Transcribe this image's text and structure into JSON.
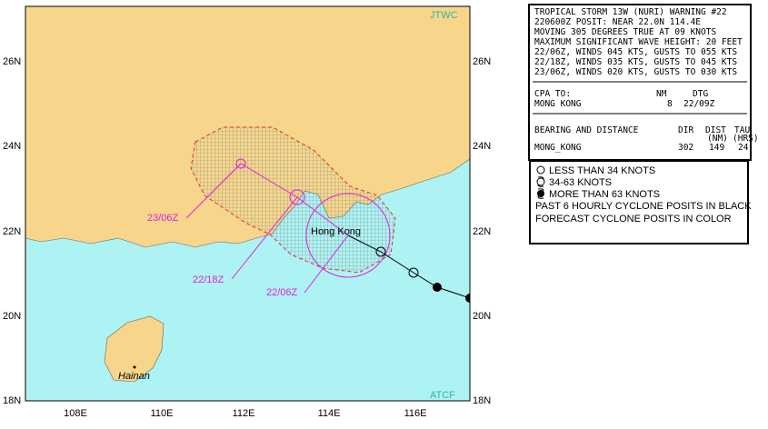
{
  "map": {
    "source_top": "JTWC",
    "source_bottom": "ATCF",
    "lat_labels": [
      "26N",
      "24N",
      "22N",
      "20N",
      "18N"
    ],
    "lon_labels": [
      "108E",
      "110E",
      "112E",
      "114E",
      "116E"
    ],
    "place_labels": [
      "Hong Kong",
      "Hainan"
    ],
    "time_labels": [
      "23/06Z",
      "22/18Z",
      "22/06Z"
    ]
  },
  "warning": {
    "lines": [
      "TROPICAL STORM 13W (NURI) WARNING #22",
      "220600Z POSIT: NEAR 22.0N 114.4E",
      "MOVING 305 DEGREES TRUE AT 09 KNOTS",
      "MAXIMUM SIGNIFICANT WAVE HEIGHT: 20 FEET",
      "22/06Z, WINDS 045 KTS, GUSTS TO 055 KTS",
      "22/18Z, WINDS 035 KTS, GUSTS TO 045 KTS",
      "23/06Z, WINDS 020 KTS, GUSTS TO 030 KTS"
    ]
  },
  "cpa": {
    "header": [
      "CPA TO:",
      "NM",
      "DTG"
    ],
    "row": [
      "MONG KONG",
      "8",
      "22/09Z"
    ]
  },
  "bearing": {
    "header": [
      "BEARING AND DISTANCE",
      "DIR",
      "DIST",
      "TAU"
    ],
    "units": [
      "(NM)",
      "(HRS)"
    ],
    "row": [
      "MONG_KONG",
      "302",
      "149",
      "24"
    ]
  },
  "legend": [
    "LESS THAN 34 KNOTS",
    "34-63 KNOTS",
    "MORE THAN 63 KNOTS",
    "PAST 6 HOURLY CYCLONE POSITS IN BLACK",
    "FORECAST CYCLONE POSITS IN COLOR"
  ]
}
